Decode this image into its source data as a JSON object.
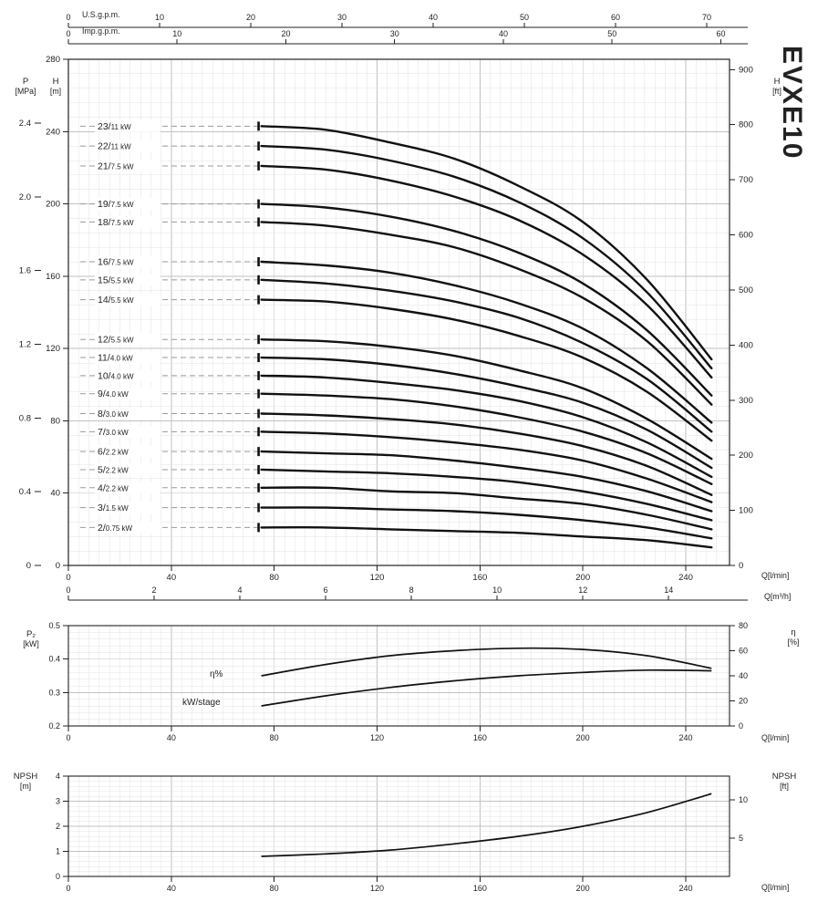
{
  "title": "EVXE10",
  "colors": {
    "curve": "#111111",
    "grid_minor": "#e3e3e3",
    "grid_major": "#c2c2c2",
    "leader": "#9a9a9a",
    "axis": "#222222",
    "background": "#ffffff"
  },
  "chart_data": [
    {
      "type": "line",
      "name": "head-flow",
      "title": "EVXE10 head vs flow curves",
      "x_axis_label": "Q[l/min]",
      "x_ticks": [
        "0",
        "40",
        "80",
        "120",
        "160",
        "200",
        "240"
      ],
      "x_max": 257,
      "top_axes": [
        {
          "label": "U.S.g.p.m.",
          "ticks": [
            "0",
            "10",
            "20",
            "30",
            "40",
            "50",
            "60",
            "70"
          ],
          "max": 72.5
        },
        {
          "label": "Imp.g.p.m.",
          "ticks": [
            "0",
            "10",
            "20",
            "30",
            "40",
            "50",
            "60"
          ],
          "max": 60.8
        }
      ],
      "m3h_axis": {
        "label": "Q[m³/h]",
        "ticks": [
          "0",
          "2",
          "4",
          "6",
          "8",
          "10",
          "12",
          "14"
        ],
        "max": 15.42
      },
      "y_left": {
        "label": "H",
        "unit": "[m]",
        "min": 0,
        "max": 280,
        "ticks": [
          "0",
          "40",
          "80",
          "120",
          "160",
          "200",
          "240",
          "280"
        ]
      },
      "y_left2": {
        "label": "P",
        "unit": "[MPa]",
        "ticks": [
          "0",
          "0.4",
          "0.8",
          "1.2",
          "1.6",
          "2.0",
          "2.4"
        ],
        "meters_per_unit": 101.97
      },
      "y_right": {
        "label": "H",
        "unit": "[ft]",
        "ticks": [
          "0",
          "100",
          "200",
          "300",
          "400",
          "500",
          "600",
          "700",
          "800",
          "900"
        ],
        "meters_per_unit": 0.3048
      },
      "x_lmin": [
        75,
        100,
        125,
        150,
        175,
        200,
        225,
        250
      ],
      "series": [
        {
          "stages": "23",
          "power": "11 kW",
          "values": [
            243,
            241,
            234,
            225,
            210,
            190,
            158,
            114
          ]
        },
        {
          "stages": "22",
          "power": "11 kW",
          "values": [
            232,
            230,
            224,
            215,
            201,
            181,
            151,
            109
          ]
        },
        {
          "stages": "21",
          "power": "7.5 kW",
          "values": [
            221,
            219,
            213,
            204,
            191,
            172,
            144,
            104
          ]
        },
        {
          "stages": "19",
          "power": "7.5 kW",
          "values": [
            200,
            198,
            193,
            185,
            173,
            156,
            130,
            94
          ]
        },
        {
          "stages": "18",
          "power": "7.5 kW",
          "values": [
            190,
            188,
            183,
            176,
            164,
            148,
            124,
            89
          ]
        },
        {
          "stages": "16",
          "power": "7.5 kW",
          "values": [
            168,
            166,
            162,
            155,
            145,
            131,
            109,
            79
          ]
        },
        {
          "stages": "15",
          "power": "5.5 kW",
          "values": [
            158,
            156,
            152,
            146,
            137,
            123,
            103,
            74
          ]
        },
        {
          "stages": "14",
          "power": "5.5 kW",
          "values": [
            147,
            146,
            142,
            136,
            127,
            115,
            96,
            69
          ]
        },
        {
          "stages": "12",
          "power": "5.5 kW",
          "values": [
            125,
            124,
            121,
            116,
            108,
            98,
            81,
            59
          ]
        },
        {
          "stages": "11",
          "power": "4.0 kW",
          "values": [
            115,
            114,
            111,
            106,
            99,
            90,
            75,
            54
          ]
        },
        {
          "stages": "10",
          "power": "4.0 kW",
          "values": [
            105,
            104,
            101,
            97,
            91,
            82,
            68,
            49
          ]
        },
        {
          "stages": "9",
          "power": "4.0 kW",
          "values": [
            95,
            94,
            92,
            88,
            82,
            74,
            62,
            45
          ]
        },
        {
          "stages": "8",
          "power": "3.0 kW",
          "values": [
            84,
            83,
            81,
            78,
            73,
            66,
            55,
            39
          ]
        },
        {
          "stages": "7",
          "power": "3.0 kW",
          "values": [
            74,
            73,
            71,
            68,
            64,
            58,
            48,
            35
          ]
        },
        {
          "stages": "6",
          "power": "2.2 kW",
          "values": [
            63,
            62,
            61,
            58,
            54,
            49,
            41,
            30
          ]
        },
        {
          "stages": "5",
          "power": "2.2 kW",
          "values": [
            53,
            52,
            51,
            49,
            46,
            41,
            34,
            25
          ]
        },
        {
          "stages": "4",
          "power": "2.2 kW",
          "values": [
            43,
            43,
            41,
            40,
            37,
            34,
            28,
            20
          ]
        },
        {
          "stages": "3",
          "power": "1.5 kW",
          "values": [
            32,
            32,
            31,
            30,
            28,
            25,
            21,
            15
          ]
        },
        {
          "stages": "2",
          "power": "0.75 kW",
          "values": [
            21,
            21,
            20,
            19,
            18,
            16,
            14,
            10
          ]
        }
      ]
    },
    {
      "type": "line",
      "name": "power-efficiency",
      "title": "Power per stage and efficiency",
      "x_axis_label": "Q[l/min]",
      "x_ticks": [
        "0",
        "40",
        "80",
        "120",
        "160",
        "200",
        "240"
      ],
      "x_max": 257,
      "y_left": {
        "label": "P₂",
        "unit": "[kW]",
        "min": 0.2,
        "max": 0.5,
        "ticks": [
          "0.2",
          "0.3",
          "0.4",
          "0.5"
        ]
      },
      "y_right": {
        "label": "η",
        "unit": "[%]",
        "min": 0,
        "max": 80,
        "ticks": [
          "0",
          "20",
          "40",
          "60",
          "80"
        ]
      },
      "x": [
        75,
        100,
        125,
        150,
        175,
        200,
        225,
        250
      ],
      "series": [
        {
          "name": "η%",
          "axis": "right",
          "values": [
            40,
            49,
            56,
            60,
            62,
            61,
            56,
            46
          ]
        },
        {
          "name": "kW/stage",
          "axis": "left",
          "values": [
            0.26,
            0.29,
            0.315,
            0.335,
            0.35,
            0.36,
            0.367,
            0.365
          ]
        }
      ]
    },
    {
      "type": "line",
      "name": "npsh",
      "title": "NPSH",
      "x_axis_label": "Q[l/min]",
      "x_ticks": [
        "0",
        "40",
        "80",
        "120",
        "160",
        "200",
        "240"
      ],
      "x_max": 257,
      "y_left": {
        "label": "NPSH",
        "unit": "[m]",
        "min": 0,
        "max": 4,
        "ticks": [
          "0",
          "1",
          "2",
          "3",
          "4"
        ]
      },
      "y_right": {
        "label": "NPSH",
        "unit": "[ft]",
        "ticks": [
          "5",
          "10"
        ],
        "meters_per_unit": 0.3048
      },
      "x": [
        75,
        100,
        125,
        150,
        175,
        200,
        225,
        250
      ],
      "series": [
        {
          "name": "NPSH",
          "axis": "left",
          "values": [
            0.8,
            0.9,
            1.05,
            1.3,
            1.6,
            2.0,
            2.55,
            3.3
          ]
        }
      ]
    }
  ]
}
